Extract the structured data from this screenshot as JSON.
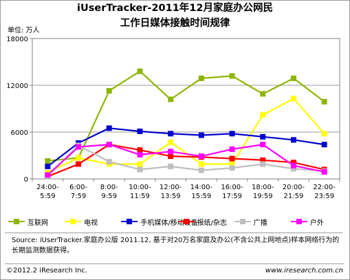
{
  "title_line1": "iUserTracker-2011年12月家庭办公网民",
  "title_line2": "工作日媒体接触时间规律",
  "unit_label": "单位: 万人",
  "source": "Source: iUserTracker.家庭办公版 2011.12, 基于对20万名家庭及办公(不含公共上网地点)样本网络行为的长期监测数据获得。",
  "copyright": "©2012.2 iResearch Inc.",
  "website": "www.iresearch.com.cn",
  "chart_data": {
    "type": "line",
    "title": "iUserTracker-2011年12月家庭办公网民 工作日媒体接触时间规律",
    "ylabel": "单位: 万人",
    "ylim": [
      0,
      18000
    ],
    "yticks": [
      0,
      6000,
      12000,
      18000
    ],
    "grid": true,
    "legend_position": "bottom",
    "categories": [
      [
        "24:00-",
        "5:59"
      ],
      [
        "6:00-",
        "7:59"
      ],
      [
        "8:00-",
        "9:59"
      ],
      [
        "10:00-",
        "11:59"
      ],
      [
        "12:00-",
        "13:59"
      ],
      [
        "14:00-",
        "15:59"
      ],
      [
        "16:00-",
        "17:59"
      ],
      [
        "18:00-",
        "19:59"
      ],
      [
        "20:00-",
        "21:59"
      ],
      [
        "22:00-",
        "23:59"
      ]
    ],
    "series": [
      {
        "name": "互联网",
        "color": "#8DB600",
        "marker": "square",
        "values": [
          2300,
          2700,
          11300,
          13800,
          10200,
          12900,
          13200,
          10900,
          12900,
          9900
        ]
      },
      {
        "name": "电视",
        "color": "#FFFF00",
        "marker": "square",
        "values": [
          800,
          2700,
          1900,
          1900,
          4700,
          1900,
          1900,
          8200,
          10300,
          5800
        ]
      },
      {
        "name": "手机媒体/移动设备",
        "color": "#0000CC",
        "marker": "square",
        "values": [
          1600,
          4600,
          6500,
          6100,
          5800,
          5600,
          5800,
          5400,
          5000,
          4400
        ]
      },
      {
        "name": "报纸/杂志",
        "color": "#FF0000",
        "marker": "square",
        "values": [
          300,
          1900,
          4400,
          3700,
          2900,
          2800,
          2600,
          2400,
          2100,
          1200
        ]
      },
      {
        "name": "广播",
        "color": "#BEBEBE",
        "marker": "square",
        "values": [
          300,
          4300,
          2200,
          1200,
          1600,
          1100,
          1400,
          1900,
          1300,
          1000
        ]
      },
      {
        "name": "户外",
        "color": "#FF00FF",
        "marker": "square",
        "values": [
          500,
          4100,
          4400,
          3100,
          3500,
          2900,
          3800,
          4400,
          1700,
          900
        ]
      }
    ]
  }
}
